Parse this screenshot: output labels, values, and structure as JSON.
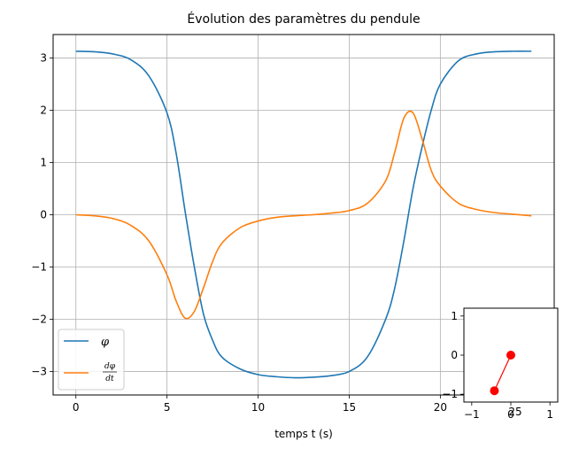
{
  "chart_data": [
    {
      "type": "line",
      "title": "Évolution des paramètres du pendule",
      "xlabel": "temps t (s)",
      "ylabel": "",
      "xlim": [
        -1.25,
        26.25
      ],
      "ylim": [
        -3.45,
        3.45
      ],
      "xticks": [
        0,
        5,
        10,
        15,
        20
      ],
      "xtick_labels": [
        "0",
        "5",
        "10",
        "15",
        "20"
      ],
      "yticks": [
        -3,
        -2,
        -1,
        0,
        1,
        2,
        3
      ],
      "ytick_labels": [
        "−3",
        "−2",
        "−1",
        "0",
        "1",
        "2",
        "3"
      ],
      "grid": true,
      "legend_position": "lower-left",
      "x": [
        0,
        1,
        2,
        3,
        4,
        5,
        5.5,
        6,
        6.5,
        7,
        7.5,
        8,
        9,
        10,
        11,
        12,
        13,
        14,
        15,
        16,
        17,
        17.5,
        18,
        18.5,
        19,
        19.5,
        20,
        21,
        22,
        23,
        24,
        25
      ],
      "series": [
        {
          "name": "φ",
          "color": "#1f77b4",
          "values": [
            3.13,
            3.12,
            3.08,
            2.97,
            2.66,
            1.95,
            1.18,
            0.05,
            -1.0,
            -1.9,
            -2.4,
            -2.72,
            -2.95,
            -3.06,
            -3.1,
            -3.12,
            -3.11,
            -3.08,
            -3.0,
            -2.72,
            -2.0,
            -1.4,
            -0.5,
            0.5,
            1.3,
            2.0,
            2.5,
            2.95,
            3.08,
            3.12,
            3.13,
            3.13
          ]
        },
        {
          "name": "dφ/dt",
          "color": "#ff7f0e",
          "values": [
            0.0,
            -0.02,
            -0.07,
            -0.2,
            -0.5,
            -1.15,
            -1.65,
            -1.98,
            -1.85,
            -1.4,
            -0.9,
            -0.55,
            -0.25,
            -0.12,
            -0.05,
            -0.02,
            0.0,
            0.03,
            0.08,
            0.22,
            0.65,
            1.2,
            1.85,
            1.95,
            1.45,
            0.85,
            0.55,
            0.22,
            0.1,
            0.04,
            0.01,
            -0.02
          ]
        }
      ]
    },
    {
      "type": "line",
      "title": "",
      "xlim": [
        -1.2,
        1.2
      ],
      "ylim": [
        -1.2,
        1.2
      ],
      "xticks": [
        -1,
        0,
        1
      ],
      "xtick_labels": [
        "−1",
        "0",
        "1"
      ],
      "yticks": [
        -1,
        0,
        1
      ],
      "ytick_labels": [
        "−1",
        "0",
        "1"
      ],
      "overlay_text": "25",
      "grid": false,
      "series": [
        {
          "name": "",
          "color": "#ff0000",
          "x": [
            0,
            -0.42
          ],
          "y": [
            0,
            -0.91
          ]
        }
      ]
    }
  ]
}
